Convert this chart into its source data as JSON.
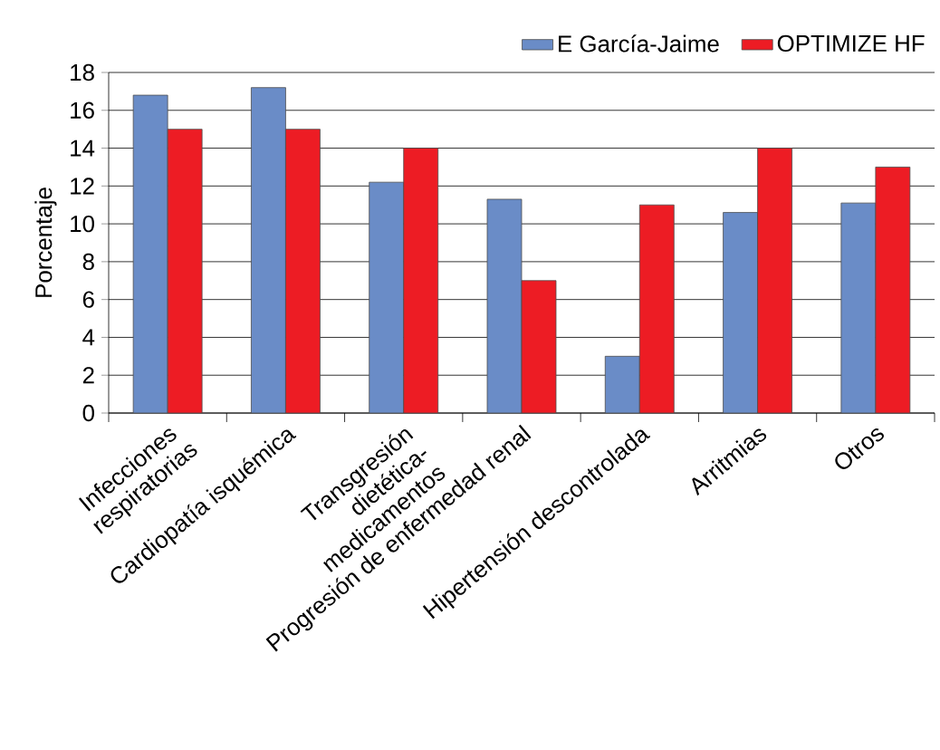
{
  "chart_data": {
    "type": "bar",
    "ylabel": "Porcentaje",
    "categories": [
      "Infecciones respiratorias",
      "Cardiopatía isquémica",
      "Transgresión dietética-medicamentos",
      "Progresión de enfermedad renal",
      "Hipertensión descontrolada",
      "Arritmias",
      "Otros"
    ],
    "series": [
      {
        "name": "E García-Jaime",
        "color": "#6a8cc7",
        "values": [
          16.8,
          17.2,
          12.2,
          11.3,
          3.0,
          10.6,
          11.1
        ]
      },
      {
        "name": "OPTIMIZE HF",
        "color": "#ed1c24",
        "values": [
          15.0,
          15.0,
          14.0,
          7.0,
          11.0,
          14.0,
          13.0
        ]
      }
    ],
    "ylim": [
      0,
      18
    ],
    "yticks": [
      0,
      2,
      4,
      6,
      8,
      10,
      12,
      14,
      16,
      18
    ],
    "grid": "y",
    "legend": "top right"
  }
}
